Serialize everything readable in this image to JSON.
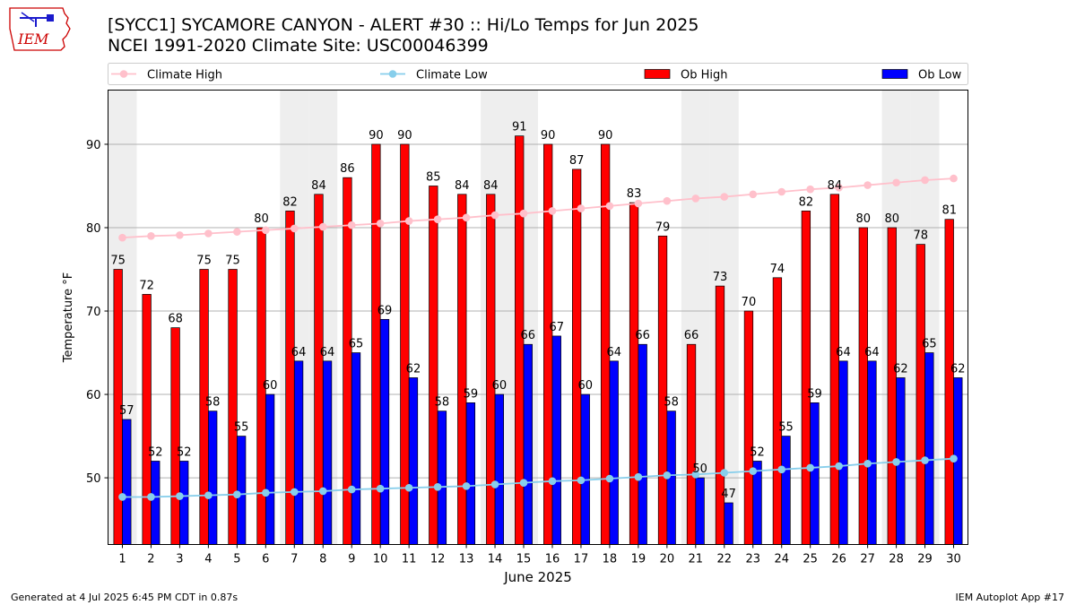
{
  "logo": {
    "text": "IEM",
    "color": "#cc0000",
    "accent": "#1a1acc"
  },
  "title_line1": "[SYCC1] SYCAMORE CANYON - ALERT #30 :: Hi/Lo Temps for Jun 2025",
  "title_line2": "NCEI 1991-2020 Climate Site: USC00046399",
  "footer_left": "Generated at 4 Jul 2025 6:45 PM CDT in 0.87s",
  "footer_right": "IEM Autoplot App #17",
  "chart_data": {
    "type": "bar",
    "xlabel": "June 2025",
    "ylabel": "Temperature °F",
    "ylim": [
      42,
      96.5
    ],
    "yticks": [
      50,
      60,
      70,
      80,
      90
    ],
    "grid": true,
    "legend_position": "top",
    "weekend_shading_color": "#eeeeee",
    "categories": [
      "1",
      "2",
      "3",
      "4",
      "5",
      "6",
      "7",
      "8",
      "9",
      "10",
      "11",
      "12",
      "13",
      "14",
      "15",
      "16",
      "17",
      "18",
      "19",
      "20",
      "21",
      "22",
      "23",
      "24",
      "25",
      "26",
      "27",
      "28",
      "29",
      "30"
    ],
    "shaded_days": [
      1,
      7,
      8,
      14,
      15,
      21,
      22,
      28,
      29
    ],
    "series": [
      {
        "name": "Climate High",
        "kind": "line",
        "color": "#ffc0cb",
        "values": [
          78.8,
          79.0,
          79.1,
          79.3,
          79.5,
          79.7,
          79.9,
          80.1,
          80.3,
          80.5,
          80.8,
          81.0,
          81.2,
          81.5,
          81.7,
          82.0,
          82.3,
          82.6,
          82.9,
          83.2,
          83.5,
          83.7,
          84.0,
          84.3,
          84.6,
          84.8,
          85.1,
          85.4,
          85.7,
          85.9
        ]
      },
      {
        "name": "Climate Low",
        "kind": "line",
        "color": "#87ceeb",
        "values": [
          47.7,
          47.7,
          47.8,
          47.9,
          48.0,
          48.2,
          48.3,
          48.4,
          48.6,
          48.7,
          48.8,
          48.9,
          49.0,
          49.2,
          49.4,
          49.6,
          49.7,
          49.9,
          50.1,
          50.3,
          50.4,
          50.6,
          50.8,
          51.0,
          51.2,
          51.4,
          51.7,
          51.9,
          52.1,
          52.3
        ]
      },
      {
        "name": "Ob High",
        "kind": "bar",
        "color": "#ff0000",
        "values": [
          75,
          72,
          68,
          75,
          75,
          80,
          82,
          84,
          86,
          90,
          90,
          85,
          84,
          84,
          91,
          90,
          87,
          90,
          83,
          79,
          66,
          73,
          70,
          74,
          82,
          84,
          80,
          80,
          78,
          81
        ]
      },
      {
        "name": "Ob Low",
        "kind": "bar",
        "color": "#0000ff",
        "values": [
          57,
          52,
          52,
          58,
          55,
          60,
          64,
          64,
          65,
          69,
          62,
          58,
          59,
          60,
          66,
          67,
          60,
          64,
          66,
          58,
          50,
          47,
          52,
          55,
          59,
          64,
          64,
          62,
          65,
          62
        ]
      }
    ]
  }
}
